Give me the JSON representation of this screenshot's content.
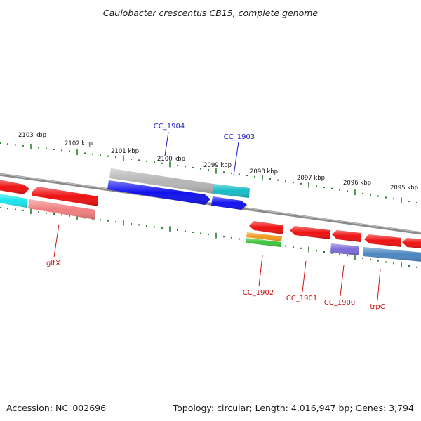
{
  "title": "Caulobacter crescentus CB15, complete genome",
  "footer": {
    "accession": "Accession: NC_002696",
    "summary": "Topology: circular; Length: 4,016,947 bp; Genes: 3,794"
  },
  "colors": {
    "backbone": "#8a8a8a",
    "tick": "#2e7d2e",
    "forward_label": "#1a1acc",
    "reverse_label": "#cc1111"
  },
  "scale_labels": [
    {
      "text": "2103 kbp"
    },
    {
      "text": "2102 kbp"
    },
    {
      "text": "2101 kbp"
    },
    {
      "text": "2100 kbp"
    },
    {
      "text": "2099 kbp"
    },
    {
      "text": "2098 kbp"
    },
    {
      "text": "2097 kbp"
    },
    {
      "text": "2096 kbp"
    },
    {
      "text": "2095 kbp"
    }
  ],
  "gene_labels": [
    {
      "text": "CC_1904",
      "strand": "forward"
    },
    {
      "text": "CC_1903",
      "strand": "forward"
    },
    {
      "text": "gltX",
      "strand": "reverse"
    },
    {
      "text": "CC_1902",
      "strand": "reverse"
    },
    {
      "text": "CC_1901",
      "strand": "reverse"
    },
    {
      "text": "CC_1900",
      "strand": "reverse"
    },
    {
      "text": "trpC",
      "strand": "reverse"
    }
  ],
  "features": [
    {
      "name": "forward-red-1",
      "color": "#ee1111"
    },
    {
      "name": "forward-red-2",
      "color": "#ee1111"
    },
    {
      "name": "forward-gray",
      "color": "#b5b5b5"
    },
    {
      "name": "forward-cyan-right",
      "color": "#17bcc6"
    },
    {
      "name": "forward-cyan-left",
      "color": "#19e6ec"
    },
    {
      "name": "forward-blue-1",
      "color": "#1111ee"
    },
    {
      "name": "forward-blue-2",
      "color": "#1111ee"
    },
    {
      "name": "reverse-pink",
      "color": "#f07f7f"
    },
    {
      "name": "reverse-red-1",
      "color": "#ee1111"
    },
    {
      "name": "reverse-red-2",
      "color": "#ee1111"
    },
    {
      "name": "reverse-red-3",
      "color": "#ee1111"
    },
    {
      "name": "reverse-red-4",
      "color": "#ee1111"
    },
    {
      "name": "reverse-red-5",
      "color": "#ee1111"
    },
    {
      "name": "reverse-orange",
      "color": "#f39a1f"
    },
    {
      "name": "reverse-green",
      "color": "#3cc43c"
    },
    {
      "name": "reverse-purple",
      "color": "#7b6cd6"
    },
    {
      "name": "reverse-steelblue",
      "color": "#4a86c0"
    }
  ]
}
